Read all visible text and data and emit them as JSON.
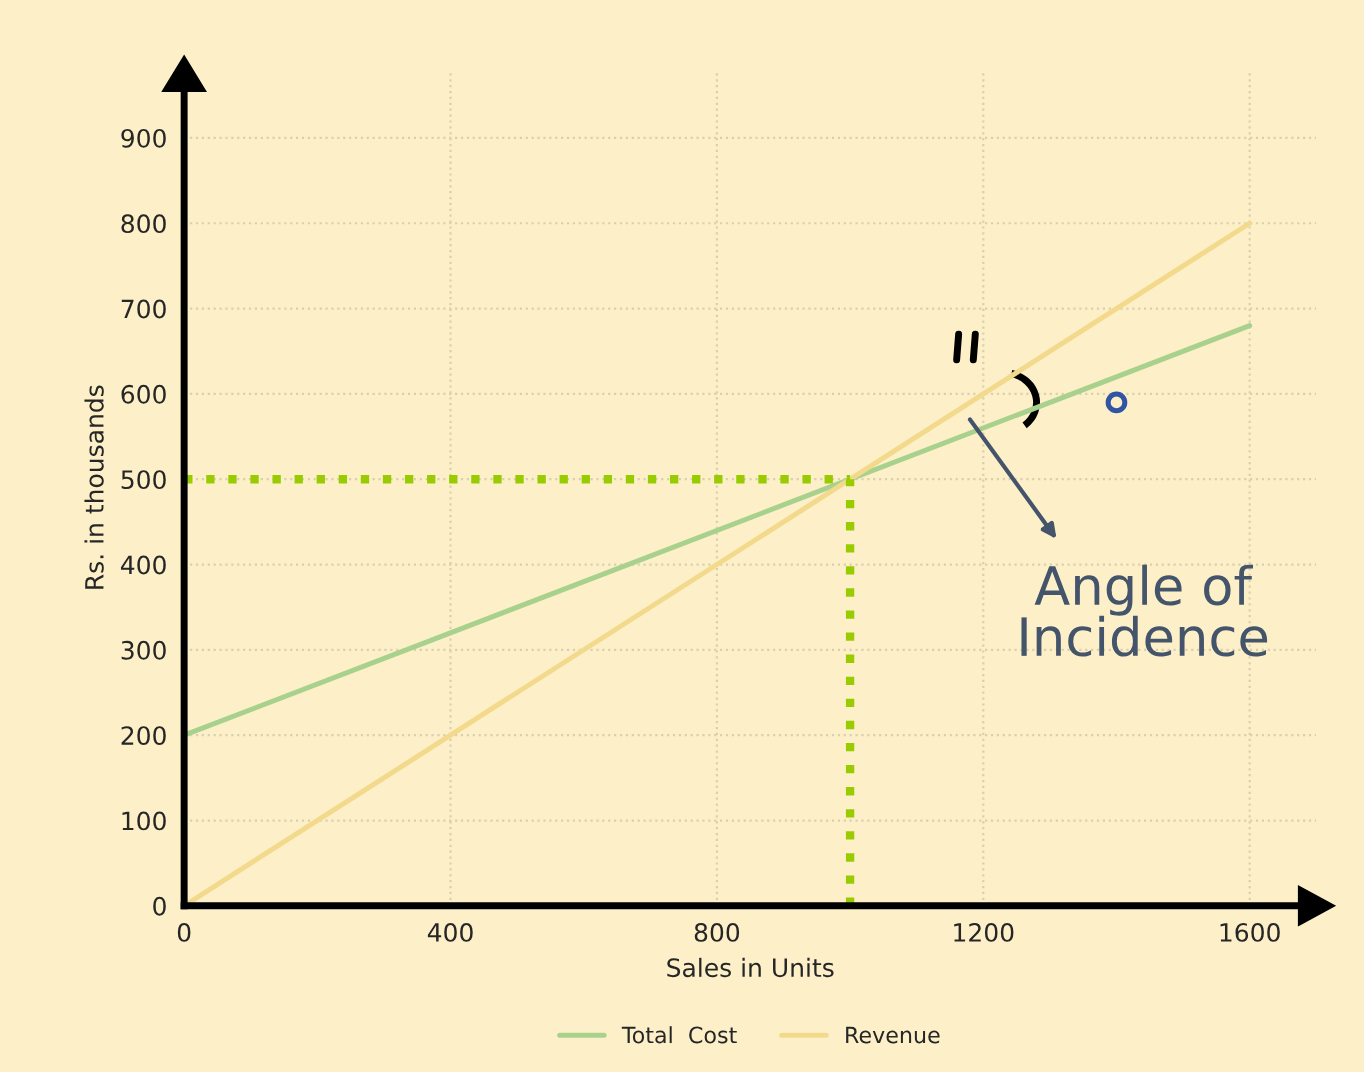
{
  "chart_data": {
    "type": "line",
    "xlabel": "Sales in Units",
    "ylabel": "Rs. in thousands",
    "x": [
      0,
      1600
    ],
    "series": [
      {
        "name": "Total  Cost",
        "color": "#a9d18e",
        "values": [
          200,
          680
        ]
      },
      {
        "name": "Revenue",
        "color": "#f2d98c",
        "values": [
          0,
          800
        ]
      }
    ],
    "xlim": [
      0,
      1700
    ],
    "ylim": [
      0,
      980
    ],
    "xticks": [
      0,
      400,
      800,
      1200,
      1600
    ],
    "yticks": [
      0,
      100,
      200,
      300,
      400,
      500,
      600,
      700,
      800,
      900
    ],
    "ref_lines": [
      {
        "axis": "y",
        "value": 500,
        "color": "#99cc00",
        "line_style": "dotted"
      },
      {
        "axis": "x",
        "value": 1000,
        "color": "#99cc00",
        "line_style": "dotted"
      }
    ],
    "annotations": [
      "Angle of\nIncidence"
    ],
    "grid": true,
    "legend": "bottom",
    "marker": "none",
    "line_style": "solid"
  }
}
